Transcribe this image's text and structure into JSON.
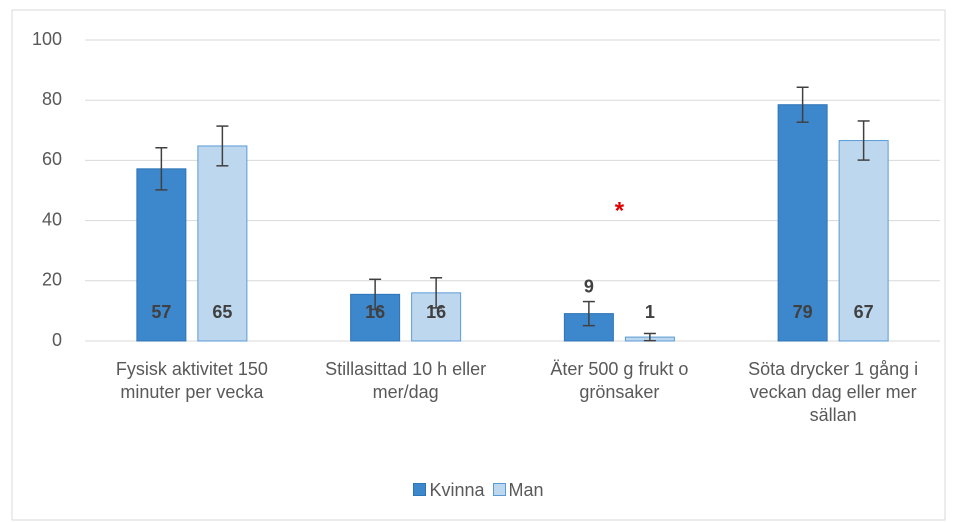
{
  "chart_data": {
    "type": "bar",
    "categories": [
      "Fysisk aktivitet 150 minuter per vecka",
      "Stillasittad 10 h eller mer/dag",
      "Äter 500 g frukt o grönsaker",
      "Söta drycker 1 gång i veckan dag eller mer sällan"
    ],
    "series": [
      {
        "name": "Kvinna",
        "color": "#3d87cc",
        "values": [
          57.2,
          15.5,
          9.1,
          78.5
        ],
        "value_labels": [
          "57",
          "16",
          "9",
          "79"
        ],
        "errors": [
          7,
          5,
          4,
          5.8
        ]
      },
      {
        "name": "Man",
        "color": "#bdd7ee",
        "values": [
          64.8,
          16.0,
          1.3,
          66.6
        ],
        "value_labels": [
          "65",
          "16",
          "1",
          "67"
        ],
        "errors": [
          6.6,
          5,
          1.2,
          6.5
        ]
      }
    ],
    "annotation": "*",
    "ylim": [
      0,
      100
    ],
    "yticks": [
      0,
      20,
      40,
      60,
      80,
      100
    ],
    "grid": true,
    "legend": "bottom"
  }
}
